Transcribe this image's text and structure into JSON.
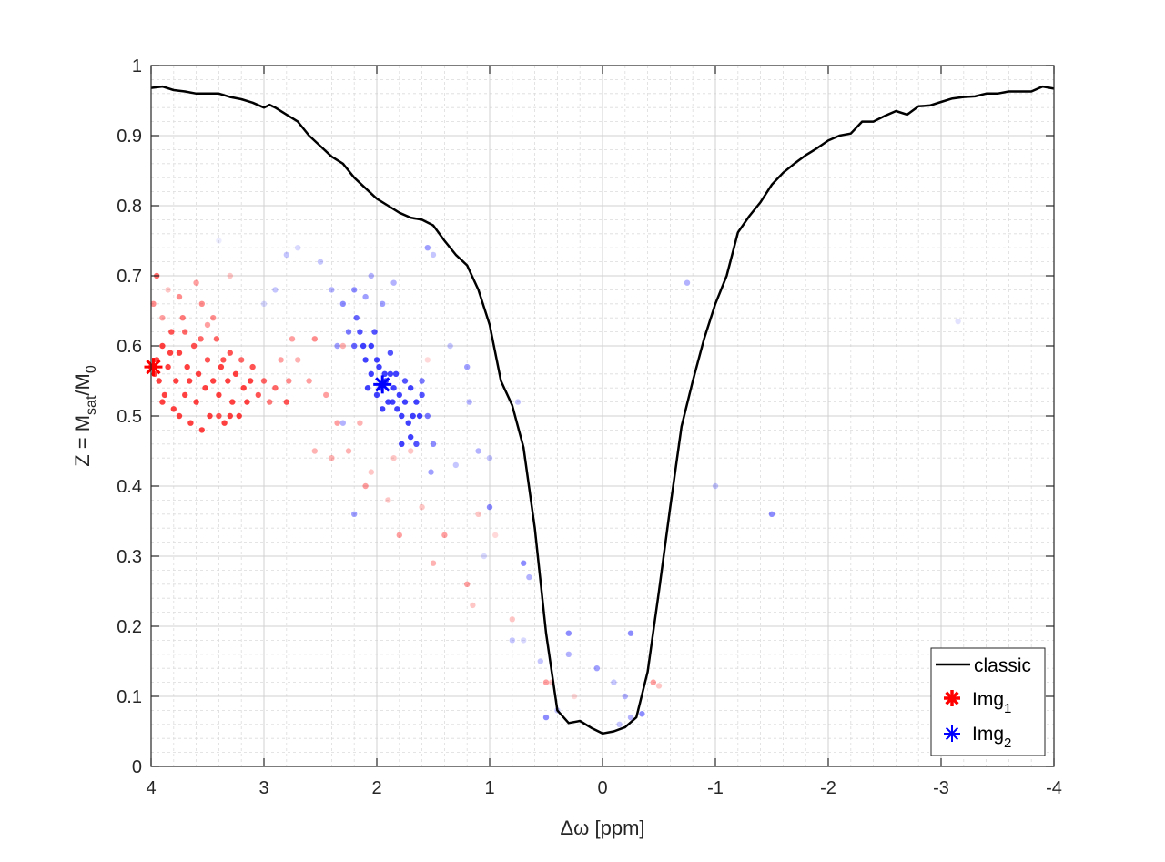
{
  "chart_data": {
    "type": "line+scatter",
    "xlabel_symbol": "Δω",
    "xlabel_unit": "[ppm]",
    "ylabel_main": "Z = M",
    "ylabel_sub1": "sat",
    "ylabel_mid": "/M",
    "ylabel_sub2": "0",
    "xlim": [
      4,
      -4
    ],
    "ylim": [
      0,
      1
    ],
    "x_reversed": true,
    "grid": "major+minor",
    "xticks": [
      4,
      3,
      2,
      1,
      0,
      -1,
      -2,
      -3,
      -4
    ],
    "xtick_labels": [
      "4",
      "3",
      "2",
      "1",
      "0",
      "-1",
      "-2",
      "-3",
      "-4"
    ],
    "yticks": [
      0,
      0.1,
      0.2,
      0.3,
      0.4,
      0.5,
      0.6,
      0.7,
      0.8,
      0.9,
      1
    ],
    "ytick_labels": [
      "0",
      "0.1",
      "0.2",
      "0.3",
      "0.4",
      "0.5",
      "0.6",
      "0.7",
      "0.8",
      "0.9",
      "1"
    ],
    "legend": {
      "placement": "bottom-right",
      "entries": [
        {
          "label": "classic",
          "sub": ""
        },
        {
          "label": "Img",
          "sub": "1"
        },
        {
          "label": "Img",
          "sub": "2"
        }
      ]
    },
    "colors": {
      "classic": "#000000",
      "img1": "#ff0000",
      "img2": "#0000ff"
    },
    "classic": {
      "x": [
        4,
        3.9,
        3.8,
        3.7,
        3.6,
        3.5,
        3.4,
        3.3,
        3.2,
        3.1,
        3.0,
        2.95,
        2.9,
        2.8,
        2.7,
        2.6,
        2.5,
        2.4,
        2.3,
        2.2,
        2.1,
        2.0,
        1.9,
        1.8,
        1.7,
        1.6,
        1.5,
        1.4,
        1.3,
        1.2,
        1.1,
        1.0,
        0.9,
        0.8,
        0.7,
        0.6,
        0.5,
        0.4,
        0.3,
        0.2,
        0.1,
        0,
        -0.1,
        -0.2,
        -0.3,
        -0.4,
        -0.5,
        -0.6,
        -0.7,
        -0.8,
        -0.9,
        -1.0,
        -1.1,
        -1.2,
        -1.3,
        -1.4,
        -1.5,
        -1.6,
        -1.7,
        -1.8,
        -1.9,
        -2.0,
        -2.1,
        -2.2,
        -2.3,
        -2.4,
        -2.5,
        -2.6,
        -2.7,
        -2.8,
        -2.9,
        -3.0,
        -3.1,
        -3.2,
        -3.3,
        -3.4,
        -3.5,
        -3.6,
        -3.7,
        -3.8,
        -3.9,
        -4.0
      ],
      "y": [
        0.968,
        0.97,
        0.965,
        0.963,
        0.96,
        0.96,
        0.96,
        0.955,
        0.952,
        0.947,
        0.94,
        0.944,
        0.94,
        0.93,
        0.92,
        0.9,
        0.885,
        0.87,
        0.86,
        0.84,
        0.825,
        0.81,
        0.8,
        0.79,
        0.783,
        0.78,
        0.772,
        0.75,
        0.73,
        0.715,
        0.68,
        0.63,
        0.55,
        0.515,
        0.455,
        0.34,
        0.19,
        0.08,
        0.062,
        0.065,
        0.055,
        0.047,
        0.05,
        0.056,
        0.07,
        0.135,
        0.25,
        0.37,
        0.485,
        0.55,
        0.61,
        0.66,
        0.7,
        0.762,
        0.785,
        0.805,
        0.83,
        0.847,
        0.86,
        0.872,
        0.882,
        0.893,
        0.9,
        0.903,
        0.92,
        0.92,
        0.928,
        0.935,
        0.93,
        0.942,
        0.943,
        0.948,
        0.953,
        0.955,
        0.956,
        0.96,
        0.96,
        0.963,
        0.963,
        0.963,
        0.97,
        0.967
      ]
    },
    "img1_marker": [
      3.98,
      0.57
    ],
    "img2_marker": [
      1.95,
      0.545
    ],
    "img1_points": [
      [
        4.0,
        0.57,
        1
      ],
      [
        3.97,
        0.56,
        1
      ],
      [
        3.95,
        0.58,
        1
      ],
      [
        3.93,
        0.55,
        1
      ],
      [
        3.9,
        0.6,
        1
      ],
      [
        3.88,
        0.53,
        1
      ],
      [
        3.85,
        0.57,
        1
      ],
      [
        3.82,
        0.62,
        0.9
      ],
      [
        3.8,
        0.51,
        1
      ],
      [
        3.78,
        0.55,
        1
      ],
      [
        3.75,
        0.59,
        1
      ],
      [
        3.72,
        0.64,
        0.7
      ],
      [
        3.7,
        0.53,
        1
      ],
      [
        3.68,
        0.57,
        1
      ],
      [
        3.65,
        0.49,
        1
      ],
      [
        3.62,
        0.6,
        0.9
      ],
      [
        3.6,
        0.52,
        1
      ],
      [
        3.58,
        0.56,
        1
      ],
      [
        3.55,
        0.66,
        0.6
      ],
      [
        3.52,
        0.54,
        1
      ],
      [
        3.5,
        0.58,
        0.9
      ],
      [
        3.48,
        0.5,
        1
      ],
      [
        3.45,
        0.55,
        1
      ],
      [
        3.42,
        0.61,
        0.8
      ],
      [
        3.4,
        0.53,
        1
      ],
      [
        3.38,
        0.57,
        1
      ],
      [
        3.35,
        0.49,
        1
      ],
      [
        3.32,
        0.55,
        1
      ],
      [
        3.3,
        0.59,
        0.9
      ],
      [
        3.28,
        0.52,
        1
      ],
      [
        3.25,
        0.56,
        1
      ],
      [
        3.22,
        0.5,
        1
      ],
      [
        3.2,
        0.58,
        0.8
      ],
      [
        3.18,
        0.54,
        1
      ],
      [
        3.15,
        0.52,
        1
      ],
      [
        3.12,
        0.55,
        1
      ],
      [
        3.1,
        0.57,
        0.9
      ],
      [
        3.05,
        0.53,
        0.9
      ],
      [
        3.0,
        0.55,
        0.8
      ],
      [
        2.95,
        0.52,
        0.7
      ],
      [
        2.9,
        0.54,
        0.8
      ],
      [
        2.85,
        0.58,
        0.5
      ],
      [
        2.8,
        0.52,
        0.9
      ],
      [
        2.78,
        0.55,
        0.6
      ],
      [
        2.75,
        0.61,
        0.5
      ],
      [
        2.7,
        0.58,
        0.4
      ],
      [
        3.98,
        0.66,
        0.6
      ],
      [
        3.95,
        0.7,
        0.8
      ],
      [
        3.9,
        0.64,
        0.5
      ],
      [
        3.85,
        0.68,
        0.3
      ],
      [
        3.75,
        0.67,
        0.6
      ],
      [
        3.6,
        0.69,
        0.5
      ],
      [
        3.5,
        0.63,
        0.5
      ],
      [
        3.3,
        0.7,
        0.3
      ],
      [
        3.75,
        0.5,
        1
      ],
      [
        3.55,
        0.48,
        1
      ],
      [
        3.4,
        0.5,
        0.9
      ],
      [
        3.3,
        0.5,
        1
      ],
      [
        3.9,
        0.52,
        1
      ],
      [
        3.7,
        0.62,
        0.8
      ],
      [
        3.45,
        0.64,
        0.6
      ],
      [
        3.83,
        0.59,
        1
      ],
      [
        3.66,
        0.55,
        1
      ],
      [
        3.36,
        0.58,
        0.9
      ],
      [
        3.56,
        0.61,
        0.8
      ],
      [
        2.6,
        0.55,
        0.5
      ],
      [
        2.55,
        0.61,
        0.6
      ],
      [
        2.45,
        0.53,
        0.5
      ],
      [
        2.35,
        0.49,
        0.5
      ],
      [
        2.3,
        0.6,
        0.4
      ],
      [
        2.25,
        0.45,
        0.4
      ],
      [
        2.15,
        0.49,
        0.4
      ],
      [
        2.1,
        0.4,
        0.5
      ],
      [
        2.05,
        0.42,
        0.3
      ],
      [
        1.9,
        0.38,
        0.3
      ],
      [
        1.85,
        0.44,
        0.3
      ],
      [
        1.8,
        0.33,
        0.5
      ],
      [
        1.7,
        0.45,
        0.3
      ],
      [
        1.6,
        0.37,
        0.3
      ],
      [
        1.5,
        0.29,
        0.4
      ],
      [
        1.4,
        0.33,
        0.5
      ],
      [
        1.2,
        0.26,
        0.5
      ],
      [
        1.15,
        0.23,
        0.3
      ],
      [
        1.1,
        0.36,
        0.3
      ],
      [
        0.95,
        0.33,
        0.2
      ],
      [
        0.8,
        0.21,
        0.3
      ],
      [
        0.5,
        0.12,
        0.5
      ],
      [
        0.45,
        0.12,
        0.3
      ],
      [
        0.25,
        0.1,
        0.2
      ],
      [
        -0.45,
        0.12,
        0.5
      ],
      [
        -0.5,
        0.115,
        0.3
      ],
      [
        2.55,
        0.45,
        0.4
      ],
      [
        2.4,
        0.44,
        0.4
      ],
      [
        1.55,
        0.58,
        0.2
      ]
    ],
    "img2_points": [
      [
        2.05,
        0.56,
        1
      ],
      [
        2.0,
        0.53,
        1
      ],
      [
        1.98,
        0.57,
        1
      ],
      [
        1.92,
        0.55,
        1
      ],
      [
        1.9,
        0.52,
        1
      ],
      [
        1.88,
        0.56,
        1
      ],
      [
        1.85,
        0.54,
        1
      ],
      [
        1.82,
        0.51,
        1
      ],
      [
        1.8,
        0.53,
        1
      ],
      [
        1.78,
        0.5,
        1
      ],
      [
        1.75,
        0.52,
        1
      ],
      [
        1.72,
        0.49,
        1
      ],
      [
        1.7,
        0.54,
        1
      ],
      [
        1.68,
        0.5,
        1
      ],
      [
        1.65,
        0.52,
        1
      ],
      [
        1.62,
        0.5,
        1
      ],
      [
        1.6,
        0.53,
        0.9
      ],
      [
        2.1,
        0.58,
        1
      ],
      [
        2.12,
        0.6,
        1
      ],
      [
        2.08,
        0.54,
        1
      ],
      [
        2.15,
        0.62,
        0.9
      ],
      [
        2.18,
        0.64,
        0.8
      ],
      [
        2.2,
        0.6,
        0.8
      ],
      [
        2.05,
        0.6,
        1
      ],
      [
        2.0,
        0.58,
        1
      ],
      [
        1.95,
        0.51,
        1
      ],
      [
        2.02,
        0.62,
        0.9
      ],
      [
        1.88,
        0.59,
        0.9
      ],
      [
        1.83,
        0.56,
        1
      ],
      [
        1.75,
        0.55,
        0.9
      ],
      [
        1.7,
        0.47,
        1
      ],
      [
        1.65,
        0.46,
        0.9
      ],
      [
        1.78,
        0.46,
        1
      ],
      [
        1.97,
        0.54,
        1
      ],
      [
        1.93,
        0.56,
        1
      ],
      [
        1.86,
        0.52,
        1
      ],
      [
        1.6,
        0.55,
        0.7
      ],
      [
        1.55,
        0.5,
        0.7
      ],
      [
        1.5,
        0.46,
        0.6
      ],
      [
        1.52,
        0.42,
        0.5
      ],
      [
        2.25,
        0.62,
        0.7
      ],
      [
        2.3,
        0.66,
        0.6
      ],
      [
        2.35,
        0.6,
        0.5
      ],
      [
        2.4,
        0.68,
        0.4
      ],
      [
        2.2,
        0.68,
        0.6
      ],
      [
        2.1,
        0.67,
        0.5
      ],
      [
        2.05,
        0.7,
        0.4
      ],
      [
        1.95,
        0.66,
        0.5
      ],
      [
        1.85,
        0.69,
        0.4
      ],
      [
        2.5,
        0.72,
        0.3
      ],
      [
        2.7,
        0.74,
        0.2
      ],
      [
        2.8,
        0.73,
        0.3
      ],
      [
        2.9,
        0.68,
        0.3
      ],
      [
        3.4,
        0.75,
        0.1
      ],
      [
        3.0,
        0.66,
        0.2
      ],
      [
        1.55,
        0.74,
        0.5
      ],
      [
        1.5,
        0.73,
        0.3
      ],
      [
        1.35,
        0.6,
        0.3
      ],
      [
        1.2,
        0.57,
        0.5
      ],
      [
        1.18,
        0.52,
        0.4
      ],
      [
        1.3,
        0.43,
        0.3
      ],
      [
        1.1,
        0.45,
        0.4
      ],
      [
        1.0,
        0.44,
        0.3
      ],
      [
        1.0,
        0.37,
        0.6
      ],
      [
        1.05,
        0.3,
        0.2
      ],
      [
        0.75,
        0.52,
        0.3
      ],
      [
        0.7,
        0.29,
        0.6
      ],
      [
        0.65,
        0.27,
        0.4
      ],
      [
        0.8,
        0.18,
        0.3
      ],
      [
        0.7,
        0.18,
        0.2
      ],
      [
        0.55,
        0.15,
        0.3
      ],
      [
        0.5,
        0.07,
        0.6
      ],
      [
        0.4,
        0.08,
        0.3
      ],
      [
        0.3,
        0.19,
        0.6
      ],
      [
        0.3,
        0.16,
        0.4
      ],
      [
        0.05,
        0.14,
        0.5
      ],
      [
        -0.1,
        0.12,
        0.3
      ],
      [
        -0.2,
        0.1,
        0.4
      ],
      [
        -0.25,
        0.19,
        0.6
      ],
      [
        -0.35,
        0.075,
        0.6
      ],
      [
        -0.25,
        0.07,
        0.4
      ],
      [
        -0.15,
        0.06,
        0.3
      ],
      [
        -0.75,
        0.69,
        0.4
      ],
      [
        -1.0,
        0.4,
        0.3
      ],
      [
        -1.5,
        0.36,
        0.6
      ],
      [
        -3.15,
        0.635,
        0.15
      ],
      [
        2.2,
        0.36,
        0.5
      ],
      [
        2.3,
        0.49,
        0.4
      ]
    ]
  }
}
